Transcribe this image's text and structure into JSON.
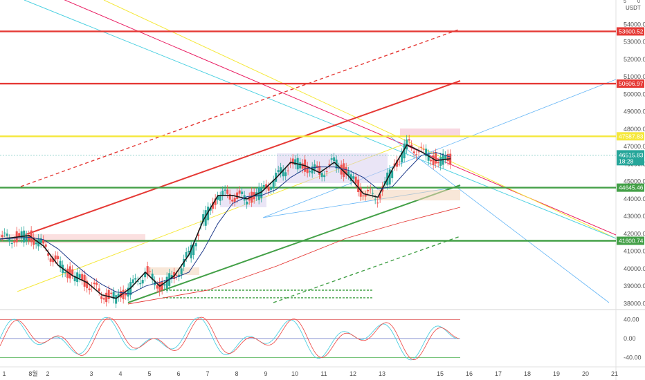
{
  "header": {
    "currency": "USDT",
    "settings_glyph": "5",
    "zero_glyph": "0"
  },
  "countdown": "18:28",
  "colors": {
    "red": "#e53935",
    "yellow": "#f5e83b",
    "green": "#43a047",
    "price_tag": "#26a69a",
    "cyan": "#4dd0e1",
    "pink": "#e91e63",
    "blue": "#64b5f6"
  },
  "chart_data": [
    {
      "type": "line",
      "title": "",
      "ylim": [
        37700,
        55400
      ],
      "x_ticks": [
        {
          "label": "1",
          "day": 0
        },
        {
          "label": "8월",
          "day": 1
        },
        {
          "label": "2",
          "day": 1.5
        },
        {
          "label": "3",
          "day": 3
        },
        {
          "label": "4",
          "day": 4
        },
        {
          "label": "5",
          "day": 5
        },
        {
          "label": "6",
          "day": 6
        },
        {
          "label": "7",
          "day": 7
        },
        {
          "label": "8",
          "day": 8
        },
        {
          "label": "9",
          "day": 9
        },
        {
          "label": "10",
          "day": 10
        },
        {
          "label": "11",
          "day": 11
        },
        {
          "label": "12",
          "day": 12
        },
        {
          "label": "13",
          "day": 13
        },
        {
          "label": "15",
          "day": 15
        },
        {
          "label": "16",
          "day": 16
        },
        {
          "label": "17",
          "day": 17
        },
        {
          "label": "18",
          "day": 18
        },
        {
          "label": "19",
          "day": 19
        },
        {
          "label": "20",
          "day": 20
        },
        {
          "label": "21",
          "day": 21
        }
      ],
      "y_ticks": [
        "54000.00",
        "53000.00",
        "52000.00",
        "51000.00",
        "50000.00",
        "49000.00",
        "48000.00",
        "47000.00",
        "46000.00",
        "45000.00",
        "44000.00",
        "43000.00",
        "42000.00",
        "41000.00",
        "40000.00",
        "39000.00",
        "38000.00"
      ],
      "horizontal_levels": [
        {
          "value": 53600.52,
          "label": "53600.52",
          "color": "#e53935"
        },
        {
          "value": 50606.97,
          "label": "50606.97",
          "color": "#e53935"
        },
        {
          "value": 47587.83,
          "label": "47587.83",
          "color": "#f5e83b"
        },
        {
          "value": 44645.46,
          "label": "44645.46",
          "color": "#43a047"
        },
        {
          "value": 41600.74,
          "label": "41600.74",
          "color": "#43a047"
        }
      ],
      "last_price": {
        "value": 46515.83,
        "label": "46515.83"
      },
      "price_series": {
        "day": [
          0,
          0.5,
          1,
          1.5,
          2,
          2.5,
          3,
          3.5,
          4,
          4.5,
          5,
          5.5,
          6,
          6.5,
          7,
          7.5,
          8,
          8.5,
          9,
          9.5,
          10,
          10.5,
          11,
          11.5,
          12,
          12.5,
          13,
          13.5,
          14,
          14.5,
          15,
          15.5
        ],
        "close": [
          41700,
          41800,
          41900,
          41300,
          40200,
          39600,
          39200,
          38500,
          38300,
          38900,
          39800,
          39000,
          39600,
          40800,
          42800,
          44200,
          44200,
          44000,
          44400,
          45200,
          46100,
          45900,
          45500,
          46100,
          45300,
          44300,
          44100,
          45700,
          47100,
          46700,
          46200,
          46300
        ]
      }
    },
    {
      "type": "line",
      "title": "",
      "ylim": [
        -58,
        58
      ],
      "y_ticks": [
        "40.00",
        "0.00",
        "-40.00"
      ],
      "levels": [
        40,
        0,
        -40
      ]
    }
  ]
}
